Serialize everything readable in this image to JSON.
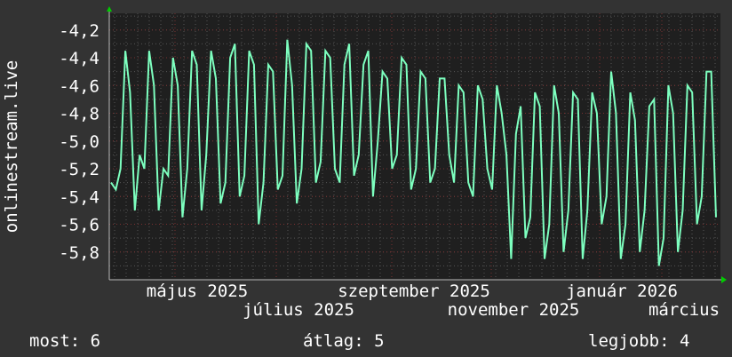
{
  "chart_data": {
    "type": "line",
    "ylabel": "onlinestream.live",
    "ylim": [
      -6.0,
      -4.08
    ],
    "y_ticks": [
      "-4,2",
      "-4,4",
      "-4,6",
      "-4,8",
      "-5,0",
      "-5,2",
      "-5,4",
      "-5,6",
      "-5,8"
    ],
    "y_tick_values": [
      -4.2,
      -4.4,
      -4.6,
      -4.8,
      -5.0,
      -5.2,
      -5.4,
      -5.6,
      -5.8
    ],
    "x_ticks": [
      "május 2025",
      "július 2025",
      "szeptember 2025",
      "november 2025",
      "január 2026",
      "március"
    ],
    "grid": true,
    "colors": {
      "background": "#333333",
      "plot": "#1f1f1f",
      "line": "#7dffbf",
      "grid_minor": "#555555",
      "grid_major": "#7a3030",
      "arrow": "#00cc00"
    },
    "series": [
      {
        "values": [
          -5.3,
          -5.35,
          -5.2,
          -4.35,
          -4.65,
          -5.5,
          -5.1,
          -5.2,
          -4.35,
          -4.6,
          -5.5,
          -5.2,
          -5.25,
          -4.4,
          -4.6,
          -5.55,
          -5.2,
          -4.35,
          -4.45,
          -5.5,
          -5.1,
          -4.35,
          -4.55,
          -5.45,
          -5.3,
          -4.4,
          -4.3,
          -5.4,
          -5.25,
          -4.35,
          -4.45,
          -5.6,
          -5.3,
          -4.45,
          -4.5,
          -5.35,
          -5.25,
          -4.27,
          -4.6,
          -5.45,
          -5.2,
          -4.3,
          -4.35,
          -5.3,
          -5.15,
          -4.35,
          -4.4,
          -5.2,
          -5.3,
          -4.45,
          -4.3,
          -5.25,
          -5.1,
          -4.45,
          -4.35,
          -5.4,
          -5.0,
          -4.5,
          -4.55,
          -5.2,
          -5.1,
          -4.4,
          -4.45,
          -5.35,
          -5.2,
          -4.5,
          -4.55,
          -5.3,
          -5.2,
          -4.55,
          -4.55,
          -5.1,
          -5.3,
          -4.6,
          -4.65,
          -5.3,
          -5.4,
          -4.6,
          -4.7,
          -5.2,
          -5.35,
          -4.6,
          -4.8,
          -5.1,
          -5.85,
          -4.95,
          -4.75,
          -5.7,
          -5.55,
          -4.65,
          -4.75,
          -5.85,
          -5.6,
          -4.6,
          -4.8,
          -5.8,
          -5.5,
          -4.65,
          -4.7,
          -5.85,
          -5.5,
          -4.65,
          -4.8,
          -5.6,
          -5.4,
          -4.5,
          -4.8,
          -5.85,
          -5.6,
          -4.65,
          -4.85,
          -5.8,
          -5.5,
          -4.75,
          -4.7,
          -5.9,
          -5.7,
          -4.6,
          -4.8,
          -5.8,
          -5.5,
          -4.6,
          -4.65,
          -5.6,
          -5.4,
          -4.5,
          -4.5,
          -5.55
        ]
      }
    ]
  },
  "legend": {
    "current": "most: 6",
    "average": "átlag: 5",
    "best": "legjobb: 4"
  }
}
